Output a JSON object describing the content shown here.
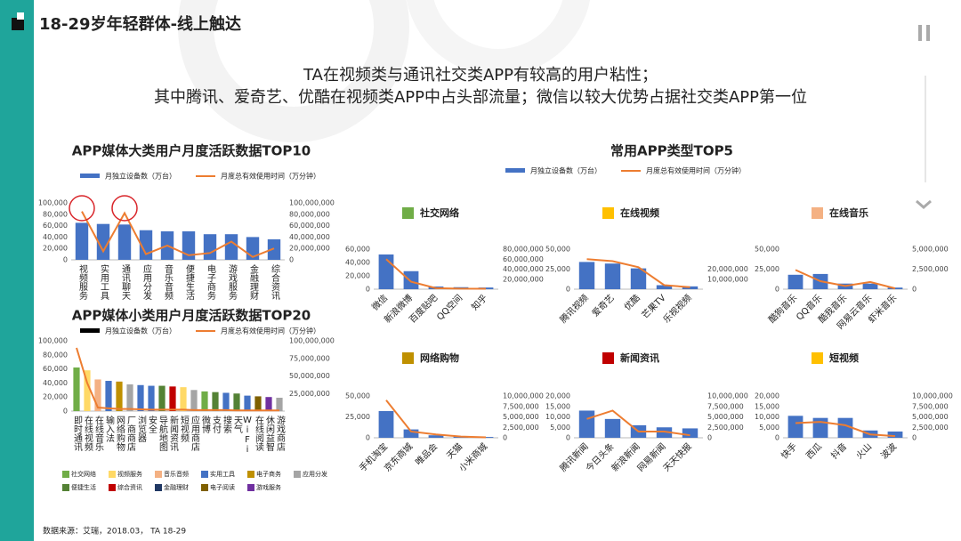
{
  "header": {
    "title": "18-29岁年轻群体-线上触达",
    "subtitle": [
      "TA在视频类与通讯社交类APP有较高的用户粘性；",
      "其中腾讯、爱奇艺、优酷在视频类APP中占头部流量；微信以较大优势占据社交类APP第一位"
    ]
  },
  "source": "数据来源：艾瑞，2018.03， TA 18-29",
  "chart_data": [
    {
      "type": "bar-line",
      "title": "APP媒体大类用户月度活跃数据TOP10",
      "categories": [
        "视频服务",
        "实用工具",
        "通讯聊天",
        "应用分发",
        "音乐音频",
        "便捷生活",
        "电子商务",
        "游戏服务",
        "金融理财",
        "综合资讯"
      ],
      "series": [
        {
          "name": "月独立设备数（万台）",
          "color": "#4472c4",
          "values": [
            65000,
            63000,
            62000,
            52000,
            50000,
            50000,
            45000,
            45000,
            40000,
            36000
          ]
        },
        {
          "name": "月度总有效使用时间（万分钟）",
          "color": "#ed7d31",
          "axis": "y2",
          "values": [
            85000000,
            15000000,
            82000000,
            10000000,
            25000000,
            8000000,
            12000000,
            32000000,
            5000000,
            20000000
          ]
        }
      ],
      "ylim": [
        0,
        100000
      ],
      "yticks": [
        0,
        {
          "value": 20000,
          "label": "20,000"
        },
        {
          "value": 40000,
          "label": "40,000"
        },
        {
          "value": 60000,
          "label": "60,000"
        },
        {
          "value": 80000,
          "label": "80,000"
        },
        {
          "value": 100000,
          "label": "100,000"
        }
      ],
      "y2lim": [
        0,
        100000000
      ],
      "y2ticks": [
        0,
        {
          "value": 20000000,
          "label": "20,000,000"
        },
        {
          "value": 40000000,
          "label": "40,000,000"
        },
        {
          "value": 60000000,
          "label": "60,000,000"
        },
        {
          "value": 80000000,
          "label": "80,000,000"
        },
        {
          "value": 100000000,
          "label": "100,000,000"
        }
      ]
    },
    {
      "type": "bar-line",
      "title": "APP媒体小类用户月度活跃数据TOP20",
      "categories": [
        "即时通讯",
        "在线视频",
        "在线音乐",
        "输入法",
        "网络购物",
        "厂商商店",
        "浏览器",
        "安全",
        "导航地图",
        "新闻资讯",
        "短视频",
        "应用商店",
        "微博",
        "支付",
        "搜索",
        "天气",
        "WiFi",
        "在线阅读",
        "休闲益智",
        "游戏商店"
      ],
      "series": [
        {
          "name": "月独立设备数（万台）",
          "colors": [
            "#70ad47",
            "#ffd966",
            "#f4b183",
            "#4472c4",
            "#bf9000",
            "#a5a5a5",
            "#4472c4",
            "#4472c4",
            "#548235",
            "#c00000",
            "#ffd966",
            "#a5a5a5",
            "#70ad47",
            "#548235",
            "#4472c4",
            "#548235",
            "#4472c4",
            "#7f6000",
            "#7030a0",
            "#a5a5a5"
          ],
          "values": [
            62000,
            58000,
            45000,
            43000,
            42000,
            38000,
            37000,
            36000,
            36000,
            35000,
            34000,
            30000,
            28000,
            27000,
            26000,
            25000,
            22000,
            21000,
            20000,
            19000
          ]
        },
        {
          "name": "月度总有效使用时间（万分钟）",
          "color": "#ed7d31",
          "axis": "y2",
          "values": [
            90000000,
            40000000,
            5000000,
            4000000,
            3000000,
            3000000,
            2500000,
            2000000,
            2000000,
            2000000,
            2000000,
            1500000,
            1500000,
            1500000,
            1500000,
            1000000,
            1000000,
            1000000,
            1000000,
            1000000
          ]
        }
      ],
      "ylim": [
        0,
        100000
      ],
      "yticks": [
        0,
        {
          "value": 20000,
          "label": "20,000"
        },
        {
          "value": 40000,
          "label": "40,000"
        },
        {
          "value": 60000,
          "label": "60,000"
        },
        {
          "value": 80000,
          "label": "80,000"
        },
        {
          "value": 100000,
          "label": "100,000"
        }
      ],
      "y2lim": [
        0,
        100000000
      ],
      "y2ticks": [
        {
          "value": 25000000,
          "label": "25,000,000"
        },
        {
          "value": 50000000,
          "label": "50,000,000"
        },
        {
          "value": 75000000,
          "label": "75,000,000"
        },
        {
          "value": 100000000,
          "label": "100,000,000"
        }
      ],
      "legend": [
        {
          "name": "社交网络",
          "color": "#70ad47"
        },
        {
          "name": "视频服务",
          "color": "#ffd966"
        },
        {
          "name": "音乐音频",
          "color": "#f4b183"
        },
        {
          "name": "实用工具",
          "color": "#4472c4"
        },
        {
          "name": "电子商务",
          "color": "#bf9000"
        },
        {
          "name": "应用分发",
          "color": "#a5a5a5"
        },
        {
          "name": "便捷生活",
          "color": "#548235"
        },
        {
          "name": "综合资讯",
          "color": "#c00000"
        },
        {
          "name": "金融理财",
          "color": "#203864"
        },
        {
          "name": "电子阅读",
          "color": "#7f6000"
        },
        {
          "name": "游戏服务",
          "color": "#7030a0"
        }
      ]
    },
    {
      "type": "panel-grid",
      "title": "常用APP类型TOP5",
      "series": [
        {
          "name": "月独立设备数（万台）",
          "color": "#4472c4"
        },
        {
          "name": "月度总有效使用时间（万分钟）",
          "color": "#ed7d31"
        }
      ],
      "panels": [
        {
          "title": "社交网络",
          "color": "#70ad47",
          "categories": [
            "微信",
            "新浪微博",
            "百度贴吧",
            "QQ空间",
            "知乎"
          ],
          "values": [
            52000,
            27000,
            4000,
            3000,
            2500
          ],
          "line_values": [
            60000000,
            15000000,
            2000000,
            1000000,
            1000000
          ],
          "ylim": [
            0,
            60000
          ],
          "yticks": [
            0,
            {
              "value": 20000,
              "label": "20,000"
            },
            {
              "value": 40000,
              "label": "40,000"
            },
            {
              "value": 60000,
              "label": "60,000"
            }
          ],
          "y2lim": [
            0,
            80000000
          ],
          "y2ticks": [
            {
              "value": 20000000,
              "label": "20,000,000"
            },
            {
              "value": 40000000,
              "label": "40,000,000"
            },
            {
              "value": 60000000,
              "label": "60,000,000"
            },
            {
              "value": 80000000,
              "label": "80,000,000"
            }
          ]
        },
        {
          "title": "在线视频",
          "color": "#ffc000",
          "categories": [
            "腾讯视频",
            "爱奇艺",
            "优酷",
            "芒果TV",
            "乐视视频"
          ],
          "values": [
            34000,
            32000,
            26000,
            5000,
            3500
          ],
          "line_values": [
            30000000,
            28000000,
            22000000,
            4000000,
            2000000
          ],
          "ylim": [
            0,
            50000
          ],
          "yticks": [
            0,
            {
              "value": 25000,
              "label": "25,000"
            },
            {
              "value": 50000,
              "label": "50,000"
            }
          ],
          "y2lim": [
            0,
            40000000
          ],
          "y2ticks": [
            {
              "value": 10000000,
              "label": "10,000,000"
            },
            {
              "value": 20000000,
              "label": "20,000,000"
            }
          ]
        },
        {
          "title": "在线音乐",
          "color": "#f4b183",
          "categories": [
            "酷狗音乐",
            "QQ音乐",
            "酷我音乐",
            "网易云音乐",
            "虾米音乐"
          ],
          "values": [
            18000,
            19000,
            7000,
            7000,
            2000
          ],
          "line_values": [
            2400000,
            1000000,
            400000,
            900000,
            100000
          ],
          "ylim": [
            0,
            50000
          ],
          "yticks": [
            0,
            {
              "value": 25000,
              "label": "25,000"
            },
            {
              "value": 50000,
              "label": "50,000"
            }
          ],
          "y2lim": [
            0,
            5000000
          ],
          "y2ticks": [
            0,
            {
              "value": 2500000,
              "label": "2,500,000"
            },
            {
              "value": 5000000,
              "label": "5,000,000"
            }
          ]
        },
        {
          "title": "网络购物",
          "color": "#bf9000",
          "categories": [
            "手机淘宝",
            "京东商城",
            "唯品会",
            "天猫",
            "小米商城"
          ],
          "values": [
            32000,
            10000,
            3000,
            2000,
            1000
          ],
          "line_values": [
            9000000,
            1500000,
            800000,
            300000,
            100000
          ],
          "ylim": [
            0,
            50000
          ],
          "yticks": [
            0,
            {
              "value": 25000,
              "label": "25,000"
            },
            {
              "value": 50000,
              "label": "50,000"
            }
          ],
          "y2lim": [
            0,
            10000000
          ],
          "y2ticks": [
            0,
            {
              "value": 2500000,
              "label": "2,500,000"
            },
            {
              "value": 5000000,
              "label": "5,000,000"
            },
            {
              "value": 7500000,
              "label": "7,500,000"
            },
            {
              "value": 10000000,
              "label": "10,000,000"
            }
          ]
        },
        {
          "title": "新闻资讯",
          "color": "#c00000",
          "categories": [
            "腾讯新闻",
            "今日头条",
            "新浪新闻",
            "网易新闻",
            "天天快报"
          ],
          "values": [
            13000,
            9000,
            6000,
            5000,
            4500
          ],
          "line_values": [
            4500000,
            6500000,
            1500000,
            1500000,
            600000
          ],
          "ylim": [
            0,
            20000
          ],
          "yticks": [
            0,
            {
              "value": 5000,
              "label": "5,000"
            },
            {
              "value": 10000,
              "label": "10,000"
            },
            {
              "value": 15000,
              "label": "15,000"
            },
            {
              "value": 20000,
              "label": "20,000"
            }
          ],
          "y2lim": [
            0,
            10000000
          ],
          "y2ticks": [
            0,
            {
              "value": 2500000,
              "label": "2,500,000"
            },
            {
              "value": 5000000,
              "label": "5,000,000"
            },
            {
              "value": 7500000,
              "label": "7,500,000"
            },
            {
              "value": 10000000,
              "label": "10,000,000"
            }
          ]
        },
        {
          "title": "短视频",
          "color": "#ffc000",
          "categories": [
            "快手",
            "西瓜",
            "抖音",
            "火山",
            "波波"
          ],
          "values": [
            10500,
            9500,
            9500,
            3500,
            3000
          ],
          "line_values": [
            3500000,
            3800000,
            3000000,
            800000,
            400000
          ],
          "ylim": [
            0,
            20000
          ],
          "yticks": [
            0,
            {
              "value": 5000,
              "label": "5,000"
            },
            {
              "value": 10000,
              "label": "10,000"
            },
            {
              "value": 15000,
              "label": "15,000"
            },
            {
              "value": 20000,
              "label": "20,000"
            }
          ],
          "y2lim": [
            0,
            10000000
          ],
          "y2ticks": [
            0,
            {
              "value": 2500000,
              "label": "2,500,000"
            },
            {
              "value": 5000000,
              "label": "5,000,000"
            },
            {
              "value": 7500000,
              "label": "7,500,000"
            },
            {
              "value": 10000000,
              "label": "10,000,000"
            }
          ]
        }
      ]
    }
  ]
}
